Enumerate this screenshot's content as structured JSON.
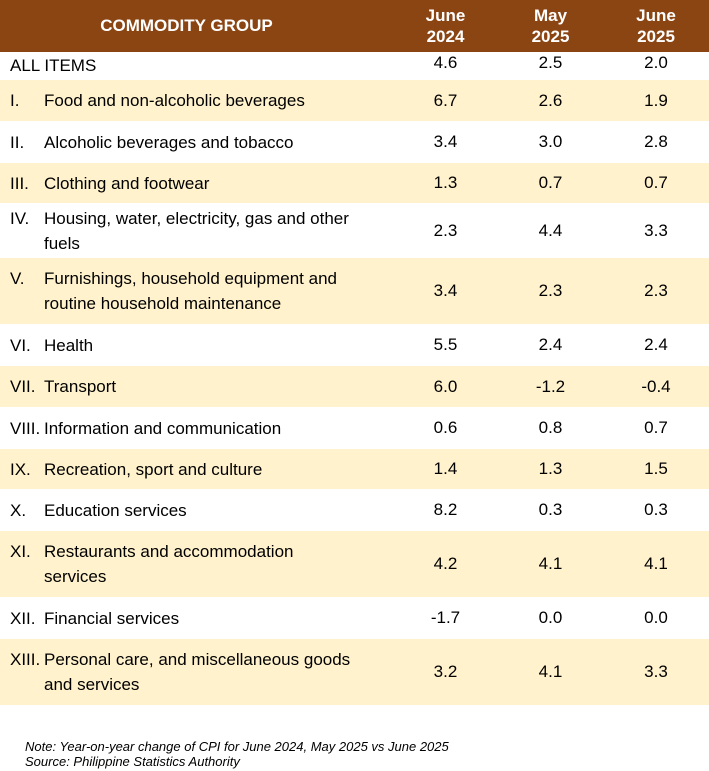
{
  "header": {
    "group": "COMMODITY GROUP",
    "cols": [
      {
        "l1": "June",
        "l2": "2024"
      },
      {
        "l1": "May",
        "l2": "2025"
      },
      {
        "l1": "June",
        "l2": "2025"
      }
    ]
  },
  "rows": [
    {
      "num": "",
      "label": "ALL ITEMS",
      "v": [
        "4.6",
        "2.5",
        "2.0"
      ]
    },
    {
      "num": "I.",
      "label": "Food and non-alcoholic beverages",
      "v": [
        "6.7",
        "2.6",
        "1.9"
      ]
    },
    {
      "num": "II.",
      "label": "Alcoholic beverages and tobacco",
      "v": [
        "3.4",
        "3.0",
        "2.8"
      ]
    },
    {
      "num": "III.",
      "label": "Clothing and footwear",
      "v": [
        "1.3",
        "0.7",
        "0.7"
      ]
    },
    {
      "num": "IV.",
      "label": "Housing, water, electricity, gas and other fuels",
      "v": [
        "2.3",
        "4.4",
        "3.3"
      ]
    },
    {
      "num": "V.",
      "label": "Furnishings, household equipment and routine household maintenance",
      "v": [
        "3.4",
        "2.3",
        "2.3"
      ]
    },
    {
      "num": "VI.",
      "label": "Health",
      "v": [
        "5.5",
        "2.4",
        "2.4"
      ]
    },
    {
      "num": "VII.",
      "label": "Transport",
      "v": [
        "6.0",
        "-1.2",
        "-0.4"
      ]
    },
    {
      "num": "VIII.",
      "label": "Information and communication",
      "v": [
        "0.6",
        "0.8",
        "0.7"
      ]
    },
    {
      "num": "IX.",
      "label": "Recreation, sport and culture",
      "v": [
        "1.4",
        "1.3",
        "1.5"
      ]
    },
    {
      "num": "X.",
      "label": "Education services",
      "v": [
        "8.2",
        "0.3",
        "0.3"
      ]
    },
    {
      "num": "XI.",
      "label": "Restaurants and accommodation services",
      "v": [
        "4.2",
        "4.1",
        "4.1"
      ]
    },
    {
      "num": "XII.",
      "label": "Financial services",
      "v": [
        "-1.7",
        "0.0",
        "0.0"
      ]
    },
    {
      "num": "XIII.",
      "label": "Personal care, and miscellaneous goods and services",
      "v": [
        "3.2",
        "4.1",
        "3.3"
      ]
    }
  ],
  "notes": {
    "note": "Note: Year-on-year change of CPI for June 2024, May 2025 vs June 2025",
    "source": "Source: Philippine Statistics Authority"
  },
  "colors": {
    "header_bg": "#8B4513",
    "header_text": "#ffffff",
    "shaded_row": "#FFF2CC"
  }
}
